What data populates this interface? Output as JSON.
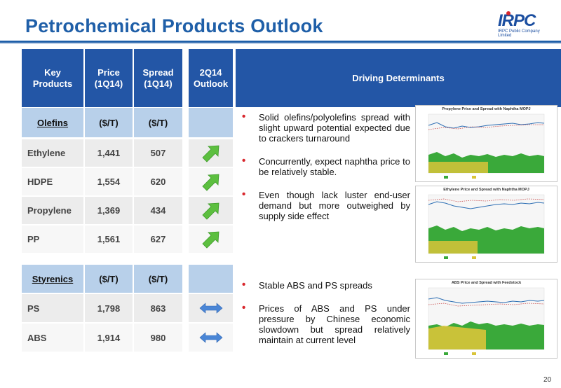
{
  "title": "Petrochemical Products Outlook",
  "logo": {
    "name": "IRPC",
    "subtitle": "IRPC Public Company Limited"
  },
  "table": {
    "headers": {
      "product": "Key Products",
      "price": "Price (1Q14)",
      "spread": "Spread (1Q14)",
      "outlook": "2Q14 Outlook",
      "determinants": "Driving Determinants"
    },
    "olefins": {
      "name": "Olefins",
      "unit_price": "($/T)",
      "unit_spread": "($/T)",
      "rows": [
        {
          "product": "Ethylene",
          "price": "1,441",
          "spread": "507",
          "outlook": "up"
        },
        {
          "product": "HDPE",
          "price": "1,554",
          "spread": "620",
          "outlook": "up"
        },
        {
          "product": "Propylene",
          "price": "1,369",
          "spread": "434",
          "outlook": "up"
        },
        {
          "product": "PP",
          "price": "1,561",
          "spread": "627",
          "outlook": "up"
        }
      ]
    },
    "styrenics": {
      "name": "Styrenics",
      "unit_price": "($/T)",
      "unit_spread": "($/T)",
      "rows": [
        {
          "product": "PS",
          "price": "1,798",
          "spread": "863",
          "outlook": "stable"
        },
        {
          "product": "ABS",
          "price": "1,914",
          "spread": "980",
          "outlook": "stable"
        }
      ]
    }
  },
  "olefins_bullets": [
    "Solid olefins/polyolefins spread with slight upward potential expected due to crackers turnaround",
    "Concurrently, expect naphtha price to be relatively stable.",
    "Even though lack luster end-user demand but more outweighed by supply side effect"
  ],
  "styrenics_bullets": [
    "Stable ABS and PS spreads",
    "Prices of ABS and PS under pressure by Chinese economic slowdown but spread relatively maintain at current level"
  ],
  "charts": [
    {
      "title": "Propylene Price and Spread with Naphtha MOPJ"
    },
    {
      "title": "Ethylene Price and Spread with Naphtha MOPJ"
    },
    {
      "title": "ABS Price and Spread with Feedstock"
    }
  ],
  "colors": {
    "header": "#2356a6",
    "section": "#b8d0ea",
    "title": "#1f5fa8",
    "arrow_up": "#5cbf3f",
    "arrow_stable": "#4a86d6"
  },
  "page_number": "20"
}
